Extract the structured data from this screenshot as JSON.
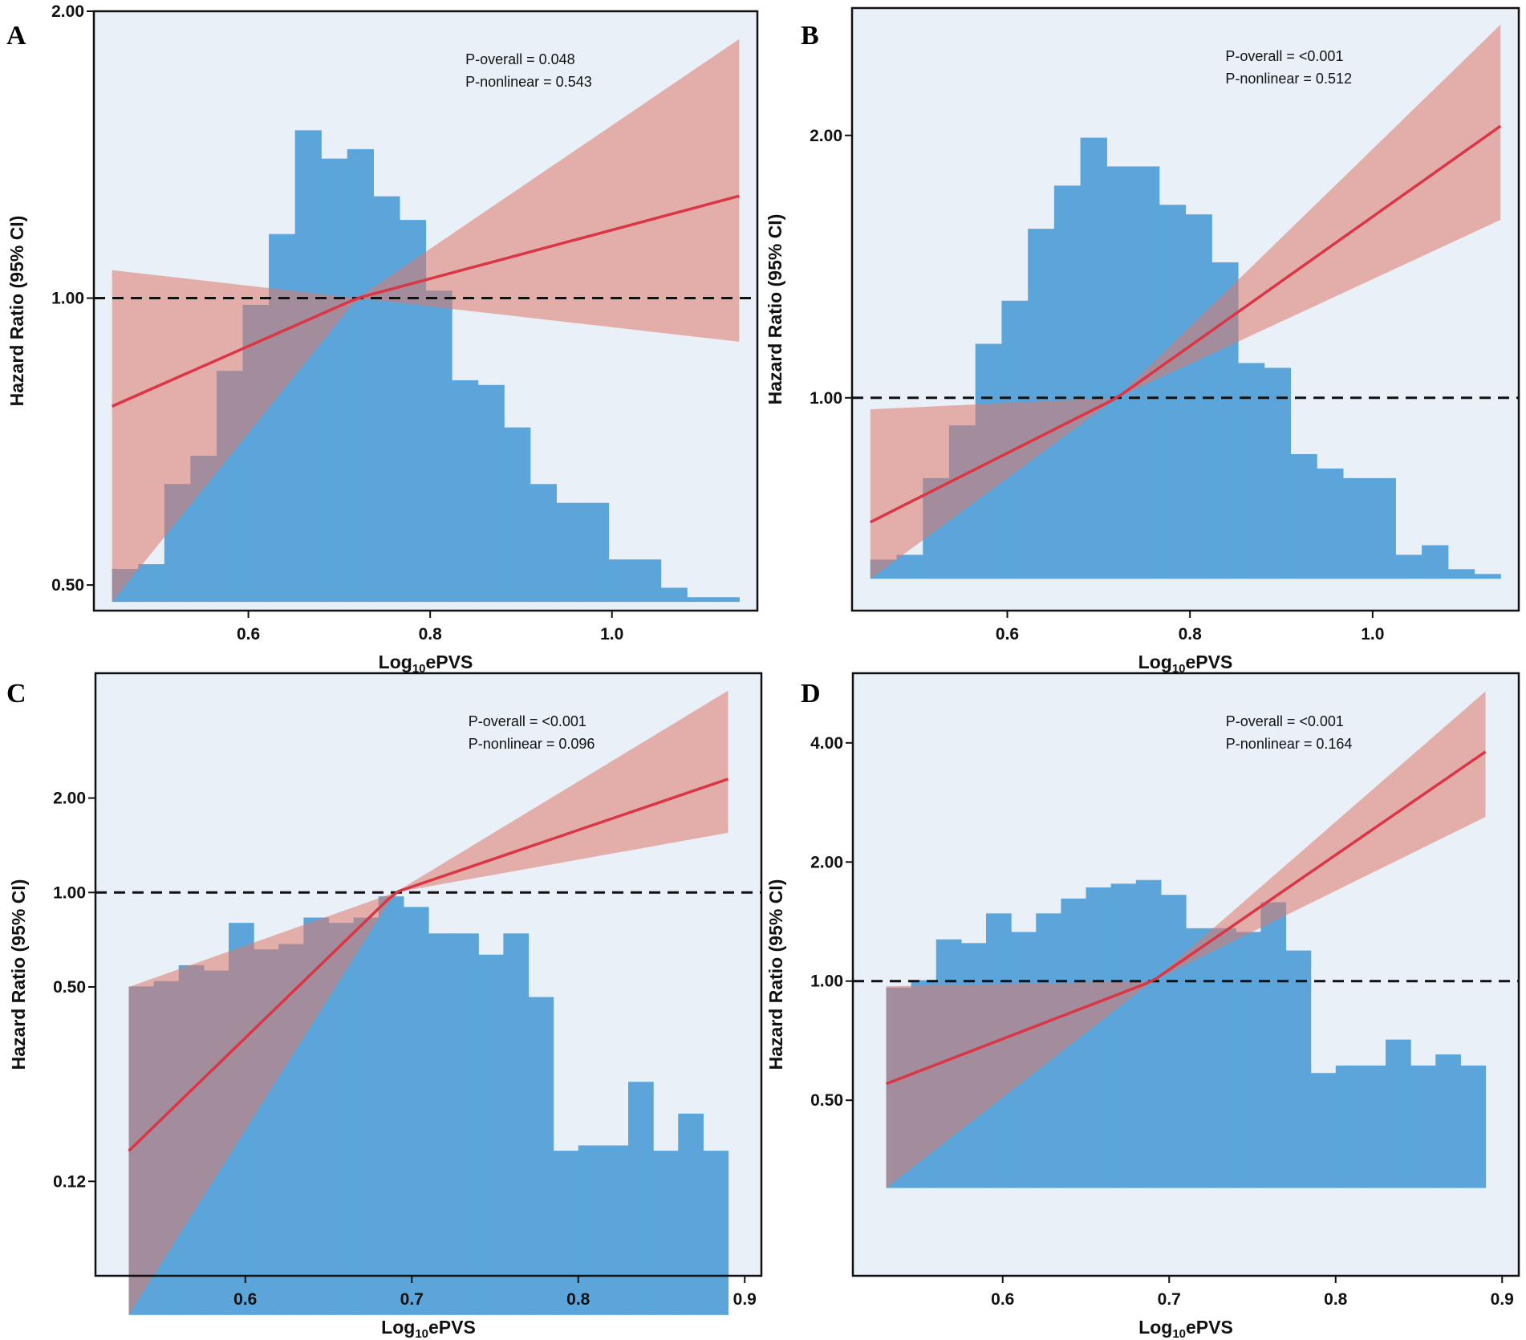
{
  "chart_data": [
    {
      "panel": "A",
      "type": "area",
      "xlabel": "Log10ePVS",
      "ylabel": "Hazard Ratio (95% CI)",
      "xlim": [
        0.43,
        1.16
      ],
      "ylim": [
        0.47,
        2.0
      ],
      "y_scale": "log",
      "x_ticks": [
        0.6,
        0.8,
        1.0
      ],
      "x_tick_labels": [
        "0.6",
        "0.8",
        "1.0"
      ],
      "y_ticks": [
        0.5,
        1.0,
        2.0
      ],
      "y_tick_labels": [
        "0.50",
        "1.00",
        "2.00"
      ],
      "reference_line": 1.0,
      "annotations": [
        "P-overall = 0.048",
        "P-nonlinear = 0.543"
      ],
      "ref_x": 0.72,
      "hr_start": [
        0.45,
        0.77
      ],
      "hr_end": [
        1.14,
        1.28
      ],
      "ci_lower_start": 0.48,
      "ci_upper_start": 1.07,
      "ci_lower_end": 0.9,
      "ci_upper_end": 1.87,
      "histogram": {
        "x_start": 0.45,
        "x_end": 1.14,
        "baseline": 0.48,
        "top": 1.5,
        "heights": [
          0.07,
          0.08,
          0.25,
          0.31,
          0.49,
          0.63,
          0.78,
          1.0,
          0.94,
          0.96,
          0.86,
          0.81,
          0.66,
          0.47,
          0.46,
          0.37,
          0.25,
          0.21,
          0.21,
          0.09,
          0.09,
          0.03,
          0.01,
          0.01
        ]
      }
    },
    {
      "panel": "B",
      "type": "area",
      "xlabel": "Log10ePVS",
      "ylabel": "Hazard Ratio (95% CI)",
      "xlim": [
        0.43,
        1.16
      ],
      "ylim": [
        0.57,
        2.8
      ],
      "y_scale": "log",
      "x_ticks": [
        0.6,
        0.8,
        1.0
      ],
      "x_tick_labels": [
        "0.6",
        "0.8",
        "1.0"
      ],
      "y_ticks": [
        1.0,
        2.0
      ],
      "y_tick_labels": [
        "1.00",
        "2.00"
      ],
      "reference_line": 1.0,
      "annotations": [
        "P-overall = <0.001",
        "P-nonlinear = 0.512"
      ],
      "ref_x": 0.72,
      "hr_start": [
        0.45,
        0.72
      ],
      "hr_end": [
        1.14,
        2.05
      ],
      "ci_lower_start": 0.62,
      "ci_upper_start": 0.97,
      "ci_lower_end": 1.6,
      "ci_upper_end": 2.68,
      "histogram": {
        "x_start": 0.45,
        "x_end": 1.14,
        "baseline": 0.62,
        "top": 2.2,
        "heights": [
          0.04,
          0.05,
          0.21,
          0.32,
          0.49,
          0.58,
          0.73,
          0.82,
          0.92,
          0.86,
          0.86,
          0.78,
          0.76,
          0.66,
          0.45,
          0.44,
          0.26,
          0.23,
          0.21,
          0.21,
          0.05,
          0.07,
          0.02,
          0.01
        ]
      }
    },
    {
      "panel": "C",
      "type": "area",
      "xlabel": "Log10ePVS",
      "ylabel": "Hazard Ratio (95% CI)",
      "xlim": [
        0.51,
        0.91
      ],
      "ylim": [
        0.06,
        5.0
      ],
      "y_scale": "log",
      "x_ticks": [
        0.6,
        0.7,
        0.8,
        0.9
      ],
      "x_tick_labels": [
        "0.6",
        "0.7",
        "0.8",
        "0.9"
      ],
      "y_ticks": [
        0.12,
        0.5,
        1.0,
        2.0
      ],
      "y_tick_labels": [
        "0.12",
        "0.50",
        "1.00",
        "2.00"
      ],
      "reference_line": 1.0,
      "annotations": [
        "P-overall = <0.001",
        "P-nonlinear = 0.096"
      ],
      "ref_x": 0.69,
      "hr_start": [
        0.53,
        0.15
      ],
      "hr_end": [
        0.89,
        2.3
      ],
      "ci_lower_start": 0.045,
      "ci_upper_start": 0.5,
      "ci_lower_end": 1.55,
      "ci_upper_end": 4.4,
      "histogram": {
        "x_start": 0.53,
        "x_end": 0.89,
        "baseline": 0.045,
        "top": 2.2,
        "heights": [
          0.62,
          0.63,
          0.66,
          0.65,
          0.74,
          0.69,
          0.7,
          0.75,
          0.74,
          0.75,
          0.79,
          0.77,
          0.72,
          0.72,
          0.68,
          0.72,
          0.6,
          0.31,
          0.32,
          0.32,
          0.44,
          0.31,
          0.38,
          0.31
        ]
      }
    },
    {
      "panel": "D",
      "type": "area",
      "xlabel": "Log10ePVS",
      "ylabel": "Hazard Ratio (95% CI)",
      "xlim": [
        0.51,
        0.91
      ],
      "ylim": [
        0.18,
        6.0
      ],
      "y_scale": "log",
      "x_ticks": [
        0.6,
        0.7,
        0.8,
        0.9
      ],
      "x_tick_labels": [
        "0.6",
        "0.7",
        "0.8",
        "0.9"
      ],
      "y_ticks": [
        0.5,
        1.0,
        2.0,
        4.0
      ],
      "y_tick_labels": [
        "0.50",
        "1.00",
        "2.00",
        "4.00"
      ],
      "reference_line": 1.0,
      "annotations": [
        "P-overall = <0.001",
        "P-nonlinear = 0.164"
      ],
      "ref_x": 0.69,
      "hr_start": [
        0.53,
        0.55
      ],
      "hr_end": [
        0.89,
        3.8
      ],
      "ci_lower_start": 0.3,
      "ci_upper_start": 0.97,
      "ci_lower_end": 2.6,
      "ci_upper_end": 5.4,
      "histogram": {
        "x_start": 0.53,
        "x_end": 0.89,
        "baseline": 0.3,
        "top": 2.6,
        "heights": [
          0.54,
          0.56,
          0.67,
          0.66,
          0.74,
          0.69,
          0.74,
          0.78,
          0.81,
          0.82,
          0.83,
          0.79,
          0.7,
          0.7,
          0.69,
          0.77,
          0.64,
          0.31,
          0.33,
          0.33,
          0.4,
          0.33,
          0.36,
          0.33
        ]
      }
    }
  ]
}
